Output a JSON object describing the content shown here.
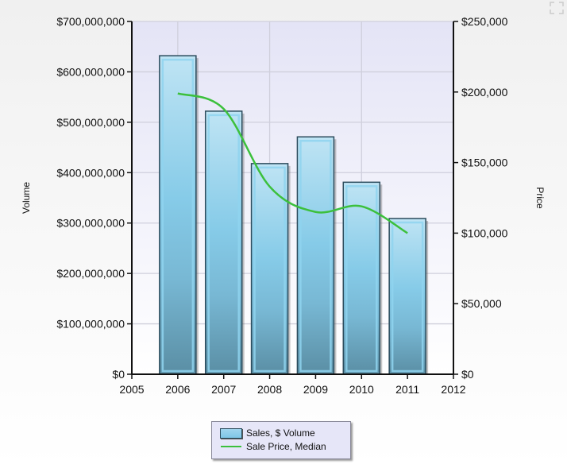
{
  "chart_data": {
    "type": "bar+line",
    "title": "",
    "categories": [
      "2006",
      "2007",
      "2008",
      "2009",
      "2010",
      "2011"
    ],
    "x_ticks": [
      "2005",
      "2006",
      "2007",
      "2008",
      "2009",
      "2010",
      "2011",
      "2012"
    ],
    "xlim": [
      2005,
      2012
    ],
    "series": [
      {
        "name": "Sales, $ Volume",
        "type": "bar",
        "axis": "left",
        "color": "#87CEEB",
        "values": [
          632000000,
          522000000,
          418000000,
          471000000,
          381000000,
          309000000
        ]
      },
      {
        "name": "Sale Price, Median",
        "type": "line",
        "axis": "right",
        "color": "#3CC03C",
        "smooth": true,
        "values": [
          199000,
          188000,
          133000,
          115000,
          119000,
          100000
        ]
      }
    ],
    "left_axis": {
      "label": "Volume",
      "ylim": [
        0,
        700000000
      ],
      "ticks": [
        "$0",
        "$100,000,000",
        "$200,000,000",
        "$300,000,000",
        "$400,000,000",
        "$500,000,000",
        "$600,000,000",
        "$700,000,000"
      ]
    },
    "right_axis": {
      "label": "Price",
      "ylim": [
        0,
        250000
      ],
      "ticks": [
        "$0",
        "$50,000",
        "$100,000",
        "$150,000",
        "$200,000",
        "$250,000"
      ]
    },
    "grid": true,
    "legend_position": "bottom-center"
  },
  "legend": {
    "items": [
      {
        "label": "Sales, $ Volume",
        "kind": "bar"
      },
      {
        "label": "Sale Price, Median",
        "kind": "line"
      }
    ]
  },
  "controls": {
    "expand_icon": "expand-fullscreen-icon"
  }
}
